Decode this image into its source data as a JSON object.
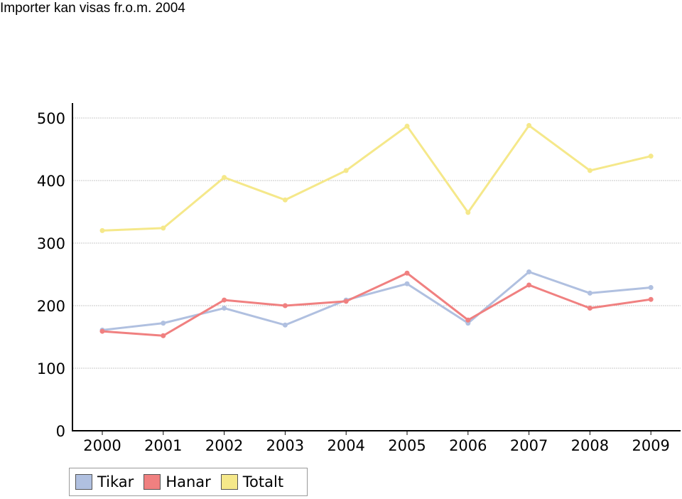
{
  "page": {
    "title": "Importer kan visas fr.o.m. 2004"
  },
  "chart_data": {
    "type": "line",
    "title": "",
    "xlabel": "",
    "ylabel": "",
    "categories": [
      "2000",
      "2001",
      "2002",
      "2003",
      "2004",
      "2005",
      "2006",
      "2007",
      "2008",
      "2009"
    ],
    "ylim": [
      0,
      500
    ],
    "yticks": [
      "0",
      "100",
      "200",
      "300",
      "400",
      "500"
    ],
    "grid": true,
    "legend_placement": "bottom-left",
    "series": [
      {
        "name": "Tikar",
        "color": "#b0c0e0",
        "values": [
          161,
          172,
          196,
          169,
          209,
          235,
          172,
          254,
          220,
          229
        ]
      },
      {
        "name": "Hanar",
        "color": "#f08080",
        "values": [
          159,
          152,
          209,
          200,
          207,
          252,
          177,
          233,
          196,
          210
        ]
      },
      {
        "name": "Totalt",
        "color": "#f5e88a",
        "values": [
          320,
          324,
          405,
          369,
          416,
          487,
          349,
          488,
          416,
          439
        ]
      }
    ]
  }
}
